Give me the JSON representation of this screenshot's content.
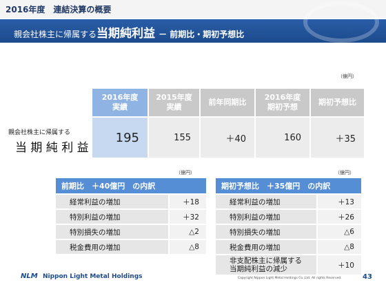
{
  "header": {
    "section": "2016年度　連結決算の概要",
    "title_prefix": "親会社株主に帰属する",
    "title_main": "当期純利益",
    "title_suffix": "－ 前期比・期初予想比"
  },
  "main_table": {
    "unit": "（億円）",
    "row_label_small": "親会社株主に帰属する",
    "row_label": "当 期 純 利 益",
    "columns": [
      {
        "header": [
          "2016年度",
          "実績"
        ],
        "value": "195"
      },
      {
        "header": [
          "2015年度",
          "実績"
        ],
        "value": "155"
      },
      {
        "header": [
          "前年同期比"
        ],
        "value": "＋40"
      },
      {
        "header": [
          "2016年度",
          "期初予想"
        ],
        "value": "160"
      },
      {
        "header": [
          "期初予想比"
        ],
        "value": "＋35"
      }
    ]
  },
  "left_table": {
    "unit": "（億円）",
    "title": "前期比　＋40億円　の内訳",
    "rows": [
      [
        [
          "経常利益の増加"
        ],
        "＋18"
      ],
      [
        [
          "特別利益の増加"
        ],
        "＋32"
      ],
      [
        [
          "特別損失の増加"
        ],
        "△2"
      ],
      [
        [
          "税金費用の増加"
        ],
        "△8"
      ]
    ]
  },
  "right_table": {
    "unit": "（億円）",
    "title": "期初予想比　＋35億円　の内訳",
    "rows": [
      [
        [
          "経常利益の増加"
        ],
        "＋13"
      ],
      [
        [
          "特別利益の増加"
        ],
        "＋26"
      ],
      [
        [
          "特別損失の増加"
        ],
        "△6"
      ],
      [
        [
          "税金費用の増加"
        ],
        "△8"
      ],
      [
        [
          "非支配株主に帰属する",
          "当期純利益の減少"
        ],
        "＋10"
      ]
    ]
  },
  "footer": {
    "company": "Nippon Light Metal Holdings",
    "logo": "NLM",
    "copyright": "Copyright Nippon Light Metal Holdings Co.,Ltd. All rights Reserved.",
    "page": "43"
  }
}
